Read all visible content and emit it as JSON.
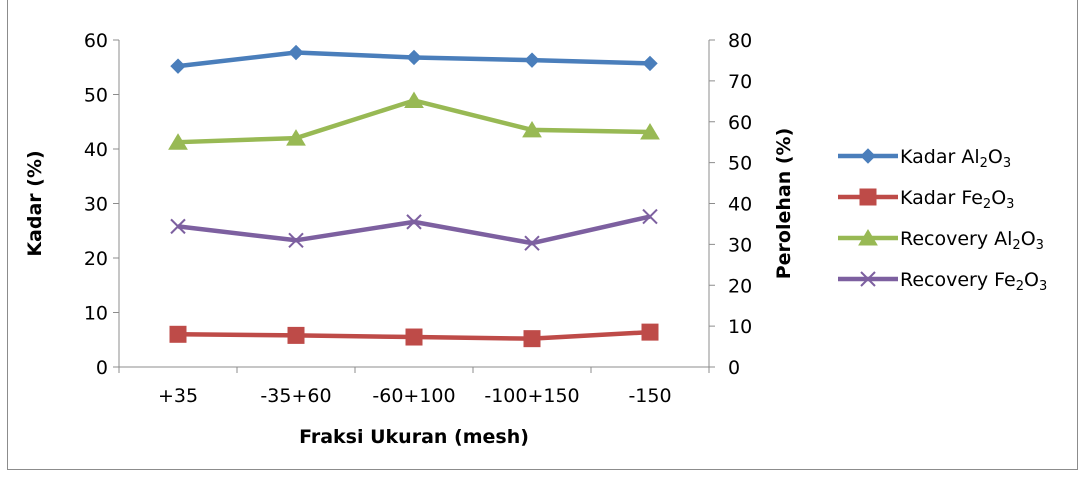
{
  "chart_data": {
    "type": "line",
    "categories": [
      "+35",
      "-35+60",
      "-60+100",
      "-100+150",
      "-150"
    ],
    "xlabel": "Fraksi Ukuran (mesh)",
    "ylabel": "Kadar (%)",
    "y2label": "Perolehan (%)",
    "ylim": [
      0,
      60
    ],
    "y2lim": [
      0,
      80
    ],
    "yticks": [
      0,
      10,
      20,
      30,
      40,
      50,
      60
    ],
    "y2ticks": [
      0,
      10,
      20,
      30,
      40,
      50,
      60,
      70,
      80
    ],
    "grid": false,
    "legend_position": "right",
    "series": [
      {
        "name": "Kadar Al2O3",
        "label_main": "Kadar Al",
        "sub1": "2",
        "mid": "O",
        "sub2": "3",
        "axis": "left",
        "marker": "diamond",
        "color": "#4a7ebb",
        "values": [
          55.2,
          57.7,
          56.8,
          56.3,
          55.7
        ]
      },
      {
        "name": "Kadar Fe2O3",
        "label_main": "Kadar Fe",
        "sub1": "2",
        "mid": "O",
        "sub2": "3",
        "axis": "left",
        "marker": "square",
        "color": "#be4b48",
        "values": [
          6.0,
          5.8,
          5.5,
          5.2,
          6.4
        ]
      },
      {
        "name": "Recovery Al2O3",
        "label_main": "Recovery Al",
        "sub1": "2",
        "mid": "O",
        "sub2": "3",
        "axis": "right",
        "marker": "triangle",
        "color": "#98b954",
        "values": [
          55.0,
          56.0,
          65.2,
          58.0,
          57.5
        ]
      },
      {
        "name": "Recovery Fe2O3",
        "label_main": "Recovery Fe",
        "sub1": "2",
        "mid": "O",
        "sub2": "3",
        "axis": "right",
        "marker": "x",
        "color": "#7d60a0",
        "values": [
          34.4,
          31.0,
          35.5,
          30.3,
          36.8
        ]
      }
    ]
  }
}
